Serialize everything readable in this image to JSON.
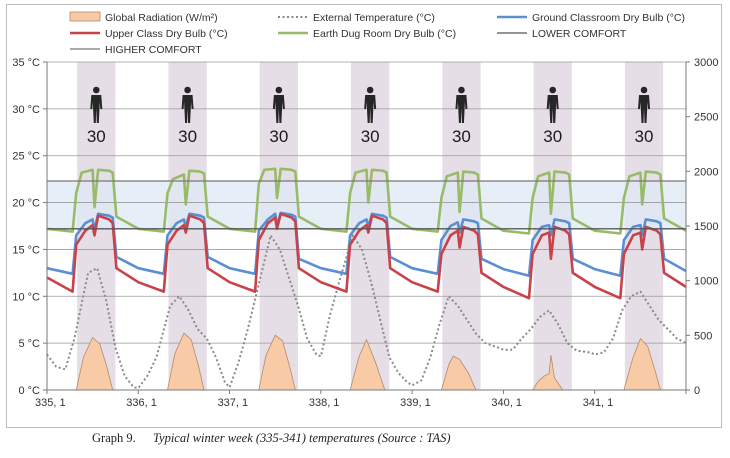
{
  "caption": {
    "label": "Graph 9.",
    "text": "Typical winter week (335-341) temperatures (Source : TAS)"
  },
  "chart_data": {
    "type": "line",
    "x_tick_labels": [
      "335, 1",
      "336, 1",
      "337, 1",
      "338, 1",
      "339, 1",
      "340, 1",
      "341, 1"
    ],
    "xlim": [
      335,
      342
    ],
    "y_left": {
      "ticks": [
        "0 °C",
        "5 °C",
        "10 °C",
        "15 °C",
        "20 °C",
        "25 °C",
        "30 °C",
        "35 °C"
      ],
      "range": [
        0,
        35
      ],
      "unit": "°C"
    },
    "y_right": {
      "ticks": [
        "0",
        "500",
        "1000",
        "1500",
        "2000",
        "2500",
        "3000"
      ],
      "range": [
        0,
        3000
      ]
    },
    "grid": true,
    "legend_position": "top",
    "occupied_periods": [
      [
        335.33,
        335.75
      ],
      [
        336.33,
        336.75
      ],
      [
        337.33,
        337.75
      ],
      [
        338.33,
        338.75
      ],
      [
        339.33,
        339.75
      ],
      [
        340.33,
        340.75
      ],
      [
        341.33,
        341.75
      ]
    ],
    "occupancy_label": "30",
    "occupancy_icon": "person-icon",
    "comfort_band": {
      "lower": 17.2,
      "upper": 22.3,
      "color": "#deeaf6"
    },
    "colors": {
      "global_radiation_fill": "#f8caa6",
      "global_radiation_stroke": "#b58a6c",
      "external_temperature": "#8a8a8a",
      "ground_classroom": "#5a8fd4",
      "upper_class": "#c9424a",
      "earth_dug_room": "#98bb68",
      "lower_comfort": "#555555",
      "higher_comfort": "#777777",
      "occupancy_band": "#e6dee6"
    },
    "series": [
      {
        "name": "Global Radiation (W/m²)",
        "axis": "right",
        "style": "area",
        "color_key": "global_radiation_fill",
        "x": [
          335.32,
          335.4,
          335.5,
          335.58,
          335.66,
          335.72,
          336.32,
          336.4,
          336.5,
          336.58,
          336.66,
          336.72,
          337.32,
          337.4,
          337.5,
          337.58,
          337.66,
          337.72,
          338.32,
          338.42,
          338.5,
          338.6,
          338.7,
          339.32,
          339.4,
          339.45,
          339.52,
          339.62,
          339.7,
          340.32,
          340.38,
          340.45,
          340.5,
          340.52,
          340.56,
          340.65,
          341.32,
          341.42,
          341.5,
          341.58,
          341.66,
          341.72
        ],
        "y": [
          0,
          300,
          480,
          420,
          200,
          0,
          0,
          330,
          520,
          460,
          220,
          0,
          0,
          320,
          500,
          450,
          210,
          0,
          0,
          310,
          460,
          250,
          0,
          0,
          230,
          310,
          280,
          150,
          0,
          0,
          80,
          130,
          150,
          320,
          110,
          0,
          0,
          300,
          470,
          400,
          180,
          0
        ]
      },
      {
        "name": "External Temperature (°C)",
        "axis": "left",
        "style": "dotted",
        "color_key": "external_temperature",
        "x": [
          335.0,
          335.1,
          335.2,
          335.3,
          335.45,
          335.55,
          335.65,
          335.75,
          335.85,
          335.95,
          336.0,
          336.1,
          336.2,
          336.35,
          336.45,
          336.55,
          336.65,
          336.75,
          336.85,
          336.95,
          337.0,
          337.1,
          337.2,
          337.3,
          337.45,
          337.55,
          337.65,
          337.75,
          337.85,
          337.95,
          338.0,
          338.1,
          338.2,
          338.35,
          338.45,
          338.55,
          338.65,
          338.75,
          338.85,
          338.95,
          339.0,
          339.1,
          339.2,
          339.3,
          339.4,
          339.5,
          339.6,
          339.7,
          339.8,
          339.95,
          340.0,
          340.1,
          340.2,
          340.3,
          340.4,
          340.5,
          340.6,
          340.7,
          340.8,
          340.95,
          341.0,
          341.1,
          341.2,
          341.3,
          341.4,
          341.5,
          341.6,
          341.7,
          341.8,
          341.9,
          342.0
        ],
        "y": [
          3.8,
          2.5,
          2.2,
          5.5,
          12.5,
          13.0,
          9.5,
          4.5,
          1.5,
          0.3,
          0.2,
          1.5,
          3.5,
          9.0,
          10.0,
          8.5,
          6.5,
          5.5,
          3.5,
          0.8,
          0.3,
          3.0,
          6.5,
          10.5,
          16.5,
          15.0,
          12.0,
          9.0,
          5.5,
          3.8,
          3.6,
          8.0,
          11.5,
          16.5,
          15.0,
          11.5,
          7.5,
          3.5,
          1.8,
          0.8,
          0.5,
          1.0,
          3.5,
          7.0,
          10.0,
          9.0,
          7.5,
          6.0,
          5.0,
          4.5,
          4.3,
          4.3,
          5.5,
          6.5,
          7.8,
          8.5,
          7.0,
          5.0,
          4.2,
          4.0,
          3.8,
          4.0,
          5.5,
          8.5,
          10.0,
          10.5,
          9.0,
          7.5,
          6.5,
          5.5,
          5.0
        ]
      },
      {
        "name": "Ground Classroom Dry Bulb (°C)",
        "axis": "left",
        "style": "line",
        "color_key": "ground_classroom",
        "x": [
          335.0,
          335.28,
          335.32,
          335.42,
          335.5,
          335.52,
          335.56,
          335.68,
          335.72,
          335.76,
          336.0,
          336.28,
          336.32,
          336.42,
          336.5,
          336.52,
          336.56,
          336.68,
          336.72,
          336.76,
          337.0,
          337.28,
          337.32,
          337.42,
          337.5,
          337.52,
          337.56,
          337.68,
          337.72,
          337.76,
          338.0,
          338.28,
          338.32,
          338.42,
          338.5,
          338.52,
          338.56,
          338.68,
          338.72,
          338.76,
          339.0,
          339.28,
          339.32,
          339.42,
          339.5,
          339.52,
          339.56,
          339.68,
          339.72,
          339.76,
          340.0,
          340.28,
          340.32,
          340.42,
          340.5,
          340.52,
          340.56,
          340.68,
          340.72,
          340.76,
          341.0,
          341.28,
          341.32,
          341.42,
          341.5,
          341.52,
          341.56,
          341.68,
          341.72,
          341.76,
          342.0
        ],
        "y": [
          13.0,
          12.4,
          16.5,
          17.8,
          18.2,
          17.0,
          18.8,
          18.6,
          18.4,
          14.2,
          13.0,
          12.4,
          16.5,
          17.8,
          18.2,
          17.4,
          18.8,
          18.6,
          18.4,
          14.2,
          13.0,
          12.4,
          17.0,
          18.2,
          18.8,
          17.6,
          18.9,
          18.7,
          18.5,
          14.0,
          13.0,
          12.4,
          16.5,
          17.8,
          18.2,
          17.4,
          18.8,
          18.6,
          18.4,
          14.2,
          13.0,
          12.4,
          16.0,
          17.5,
          17.9,
          16.8,
          18.2,
          18.0,
          17.8,
          14.0,
          12.9,
          12.2,
          16.0,
          17.4,
          17.6,
          16.5,
          18.2,
          18.0,
          17.8,
          14.0,
          12.9,
          12.2,
          16.0,
          17.4,
          17.6,
          16.5,
          18.2,
          18.0,
          17.8,
          14.0,
          12.7
        ]
      },
      {
        "name": "Upper Class Dry Bulb (°C)",
        "axis": "left",
        "style": "line",
        "color_key": "upper_class",
        "x": [
          335.0,
          335.28,
          335.32,
          335.42,
          335.5,
          335.52,
          335.56,
          335.68,
          335.72,
          335.76,
          336.0,
          336.28,
          336.32,
          336.42,
          336.5,
          336.52,
          336.56,
          336.68,
          336.72,
          336.76,
          337.0,
          337.28,
          337.32,
          337.42,
          337.5,
          337.52,
          337.56,
          337.68,
          337.72,
          337.76,
          338.0,
          338.28,
          338.32,
          338.42,
          338.5,
          338.52,
          338.56,
          338.68,
          338.72,
          338.76,
          339.0,
          339.28,
          339.32,
          339.42,
          339.5,
          339.52,
          339.56,
          339.68,
          339.72,
          339.76,
          340.0,
          340.28,
          340.32,
          340.42,
          340.5,
          340.52,
          340.56,
          340.68,
          340.72,
          340.76,
          341.0,
          341.28,
          341.32,
          341.42,
          341.5,
          341.52,
          341.56,
          341.68,
          341.72,
          341.76,
          342.0
        ],
        "y": [
          12.0,
          10.5,
          15.5,
          17.0,
          17.6,
          16.5,
          18.6,
          18.2,
          17.8,
          13.0,
          11.5,
          10.5,
          15.5,
          17.0,
          17.6,
          16.8,
          18.6,
          18.2,
          17.8,
          13.0,
          11.5,
          10.5,
          16.0,
          17.8,
          18.4,
          17.2,
          18.8,
          18.4,
          18.0,
          13.0,
          11.5,
          10.5,
          15.5,
          17.0,
          17.6,
          16.8,
          18.6,
          18.2,
          17.8,
          13.0,
          11.5,
          10.5,
          14.5,
          16.5,
          17.0,
          15.2,
          17.4,
          17.0,
          16.6,
          12.5,
          11.0,
          9.8,
          14.5,
          16.5,
          16.8,
          14.0,
          17.4,
          17.0,
          16.6,
          12.5,
          11.0,
          9.8,
          14.5,
          16.5,
          16.8,
          15.0,
          17.4,
          17.0,
          16.6,
          12.5,
          11.0
        ]
      },
      {
        "name": "Earth Dug Room Dry Bulb (°C)",
        "axis": "left",
        "style": "line",
        "color_key": "earth_dug_room",
        "x": [
          335.0,
          335.28,
          335.32,
          335.38,
          335.5,
          335.52,
          335.56,
          335.68,
          335.72,
          335.76,
          336.0,
          336.28,
          336.32,
          336.38,
          336.5,
          336.52,
          336.56,
          336.68,
          336.72,
          336.76,
          337.0,
          337.28,
          337.32,
          337.38,
          337.5,
          337.52,
          337.56,
          337.68,
          337.72,
          337.76,
          338.0,
          338.28,
          338.32,
          338.38,
          338.5,
          338.52,
          338.56,
          338.68,
          338.72,
          338.76,
          339.0,
          339.28,
          339.32,
          339.38,
          339.5,
          339.52,
          339.56,
          339.68,
          339.72,
          339.76,
          340.0,
          340.28,
          340.32,
          340.38,
          340.5,
          340.52,
          340.56,
          340.68,
          340.72,
          340.76,
          341.0,
          341.28,
          341.32,
          341.38,
          341.5,
          341.52,
          341.56,
          341.68,
          341.72,
          341.76,
          342.0
        ],
        "y": [
          17.2,
          16.9,
          21.0,
          23.2,
          23.5,
          19.5,
          23.5,
          23.4,
          23.2,
          18.5,
          17.2,
          16.9,
          21.0,
          22.5,
          23.0,
          19.8,
          23.4,
          23.3,
          23.1,
          18.5,
          17.2,
          16.9,
          22.0,
          23.5,
          23.6,
          20.5,
          23.6,
          23.5,
          23.3,
          18.5,
          17.2,
          16.9,
          21.0,
          23.2,
          23.5,
          20.0,
          23.5,
          23.4,
          23.2,
          18.5,
          17.2,
          16.9,
          20.5,
          22.8,
          23.2,
          19.0,
          23.3,
          23.2,
          23.0,
          18.3,
          17.0,
          16.7,
          20.5,
          22.8,
          23.2,
          18.8,
          23.3,
          23.2,
          23.0,
          18.3,
          17.0,
          16.7,
          20.5,
          22.8,
          23.2,
          19.8,
          23.3,
          23.2,
          23.0,
          18.3,
          17.0
        ]
      },
      {
        "name": "LOWER COMFORT",
        "axis": "left",
        "style": "hline",
        "color_key": "lower_comfort",
        "x": [
          335,
          342
        ],
        "y": [
          17.2,
          17.2
        ]
      },
      {
        "name": "HIGHER COMFORT",
        "axis": "left",
        "style": "hline",
        "color_key": "higher_comfort",
        "x": [
          335,
          342
        ],
        "y": [
          22.3,
          22.3
        ]
      }
    ]
  }
}
